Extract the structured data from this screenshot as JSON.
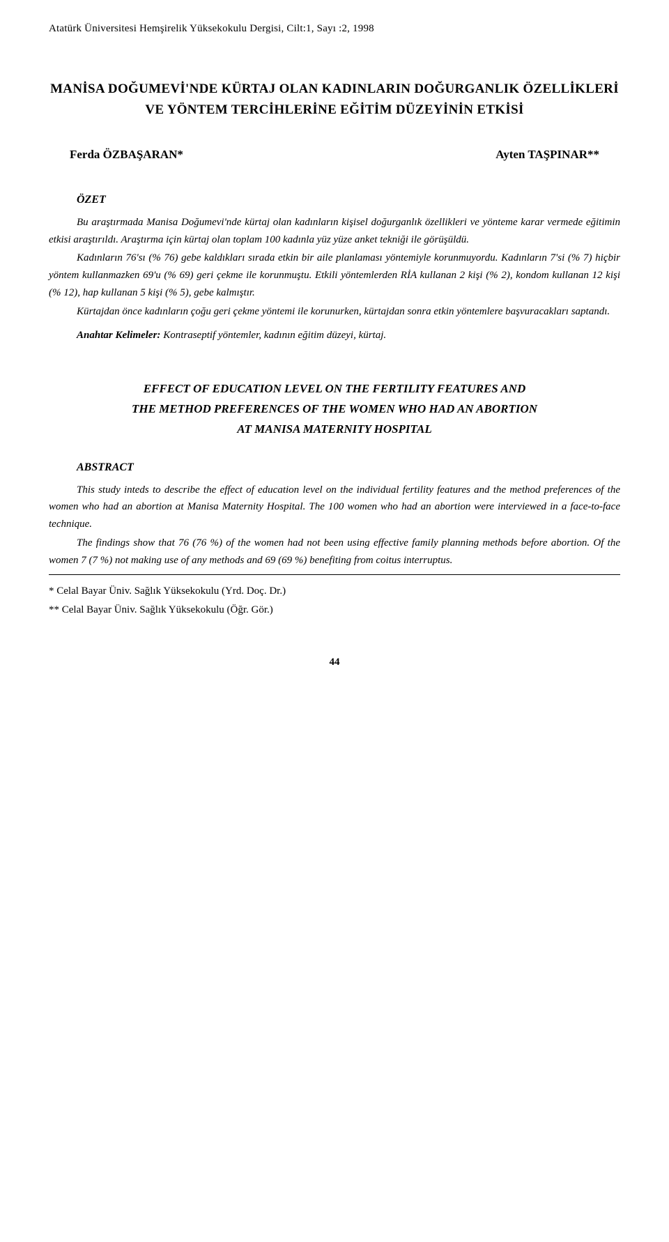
{
  "journal_header": "Atatürk Üniversitesi Hemşirelik Yüksekokulu Dergisi, Cilt:1, Sayı :2, 1998",
  "title_tr": "MANİSA DOĞUMEVİ'NDE KÜRTAJ OLAN KADINLARIN DOĞURGANLIK ÖZELLİKLERİ VE YÖNTEM TERCİHLERİNE EĞİTİM DÜZEYİNİN ETKİSİ",
  "authors": {
    "a1": "Ferda ÖZBAŞARAN*",
    "a2": "Ayten TAŞPINAR**"
  },
  "ozet_label": "ÖZET",
  "ozet_p1": "Bu araştırmada Manisa Doğumevi'nde kürtaj olan kadınların kişisel doğurganlık özellikleri ve yönteme karar vermede eğitimin etkisi araştırıldı. Araştırma için kürtaj olan toplam 100 kadınla yüz yüze anket tekniği ile görüşüldü.",
  "ozet_p2": "Kadınların 76'sı (% 76) gebe kaldıkları sırada etkin bir aile planlaması yöntemiyle korunmuyordu. Kadınların 7'si (% 7) hiçbir yöntem kullanmazken 69'u (% 69) geri çekme ile korunmuştu. Etkili yöntemlerden RİA kullanan 2 kişi (% 2), kondom kullanan 12 kişi (% 12), hap kullanan 5 kişi (% 5), gebe kalmıştır.",
  "ozet_p3": "Kürtajdan önce kadınların çoğu geri çekme yöntemi ile korunurken, kürtajdan sonra etkin yöntemlere başvuracakları saptandı.",
  "keywords_label": "Anahtar Kelimeler:",
  "keywords_text": " Kontraseptif yöntemler, kadının eğitim düzeyi, kürtaj.",
  "title_en_l1": "EFFECT OF EDUCATION LEVEL ON THE FERTILITY FEATURES AND",
  "title_en_l2": "THE METHOD PREFERENCES OF THE WOMEN WHO HAD AN ABORTION",
  "title_en_l3": "AT MANISA MATERNITY HOSPITAL",
  "abstract_label": "ABSTRACT",
  "abs_p1": "This study inteds to describe the effect of education level on the individual fertility features and the method preferences of the women who had an abortion at Manisa Maternity Hospital. The 100 women who had an abortion were interviewed in a face-to-face technique.",
  "abs_p2": "The findings show that 76 (76 %) of the women had not been using effective family planning methods before abortion. Of the women 7 (7 %) not making use of any methods and 69 (69 %) benefiting from coitus interruptus.",
  "aff1": "* Celal Bayar Üniv. Sağlık Yüksekokulu (Yrd. Doç. Dr.)",
  "aff2": "** Celal Bayar Üniv. Sağlık Yüksekokulu (Öğr. Gör.)",
  "page_number": "44"
}
